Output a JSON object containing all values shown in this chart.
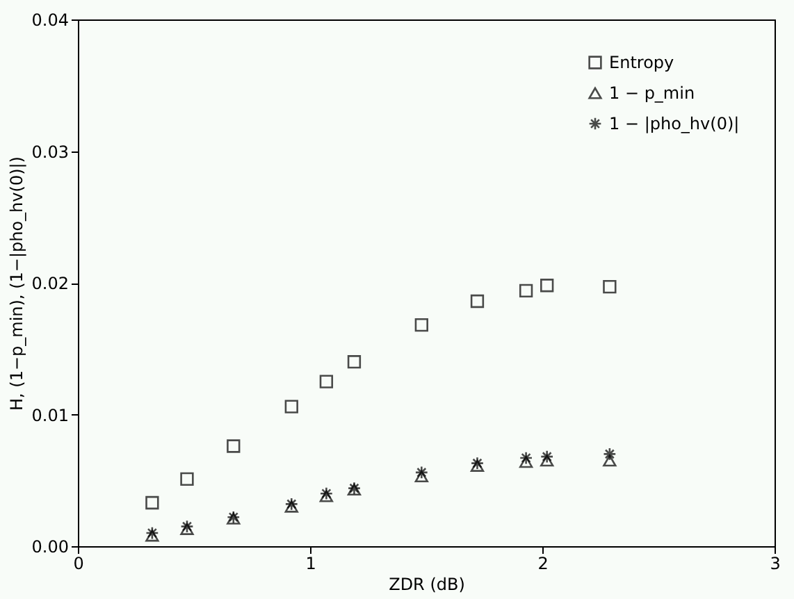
{
  "chart_data": {
    "type": "scatter",
    "xlabel": "ZDR (dB)",
    "ylabel": "H,  (1−p_min),  (1−|pho_hv(0)|)",
    "x": [
      0.32,
      0.47,
      0.67,
      0.92,
      1.07,
      1.19,
      1.48,
      1.72,
      1.93,
      2.02,
      2.29
    ],
    "series": [
      {
        "name": "Entropy",
        "color": "#000000",
        "marker": "square",
        "values": [
          0.0033,
          0.0051,
          0.0076,
          0.0106,
          0.0125,
          0.014,
          0.0168,
          0.0186,
          0.0194,
          0.0198,
          0.0197
        ]
      },
      {
        "name": "1 − p_min",
        "color": "#000000",
        "marker": "triangle",
        "values": [
          0.0008,
          0.0013,
          0.0021,
          0.003,
          0.0038,
          0.0043,
          0.0053,
          0.0061,
          0.0064,
          0.0065,
          0.0065
        ]
      },
      {
        "name": "1 − |pho_hv(0)|",
        "color": "#000000",
        "marker": "cross",
        "values": [
          0.001,
          0.0015,
          0.0022,
          0.0032,
          0.004,
          0.0044,
          0.0056,
          0.0063,
          0.0067,
          0.0068,
          0.007
        ]
      }
    ],
    "xlim": [
      0,
      3
    ],
    "xticks": [
      0,
      1,
      2,
      3
    ],
    "ylim": [
      0,
      0.04
    ],
    "yticks": [
      {
        "value": 0,
        "label": "0.00"
      },
      0.01,
      0.02,
      0.03,
      0.04
    ],
    "legend": "top right",
    "grid": false
  }
}
